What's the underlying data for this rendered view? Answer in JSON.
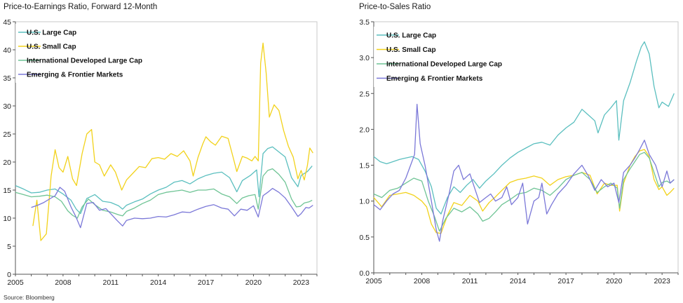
{
  "source": "Source: Bloomberg",
  "colors": {
    "us_large": "#5bbfbf",
    "us_small": "#f2d21b",
    "intl_dev": "#6fc495",
    "emerging": "#7b78d8"
  },
  "chart_data": [
    {
      "type": "line",
      "title": "Price-to-Earnings Ratio, Forward 12-Month",
      "xlabel": "",
      "ylabel": "",
      "xlim": [
        2005,
        2024
      ],
      "ylim": [
        0,
        45
      ],
      "x_ticks": [
        2005,
        2008,
        2011,
        2014,
        2017,
        2020,
        2023
      ],
      "y_ticks": [
        0,
        5,
        10,
        15,
        20,
        25,
        30,
        35,
        40,
        45
      ],
      "y_tick_labels": [
        "0",
        "5",
        "10",
        "15",
        "20",
        "25",
        "30",
        "35",
        "40",
        "45"
      ],
      "grid": false,
      "legend_position": "top-left",
      "series": [
        {
          "name": "U.S. Large Cap",
          "color": "#5bbfbf",
          "x": [
            2005.0,
            2005.5,
            2006.0,
            2006.5,
            2007.0,
            2007.5,
            2008.0,
            2008.5,
            2008.83,
            2009.1,
            2009.5,
            2010.0,
            2010.5,
            2011.0,
            2011.5,
            2011.75,
            2012.0,
            2012.5,
            2013.0,
            2013.5,
            2014.0,
            2014.5,
            2015.0,
            2015.5,
            2016.0,
            2016.5,
            2017.0,
            2017.5,
            2018.0,
            2018.5,
            2018.95,
            2019.3,
            2019.8,
            2020.2,
            2020.35,
            2020.6,
            2020.9,
            2021.2,
            2021.6,
            2022.0,
            2022.4,
            2022.8,
            2023.0,
            2023.4,
            2023.7
          ],
          "y": [
            15.8,
            15.2,
            14.5,
            14.6,
            15.0,
            15.2,
            14.3,
            13.2,
            11.6,
            10.8,
            13.5,
            14.2,
            13.0,
            12.8,
            12.2,
            11.6,
            12.3,
            12.9,
            13.4,
            14.3,
            15.0,
            15.5,
            16.4,
            16.7,
            16.1,
            17.0,
            17.6,
            18.0,
            18.2,
            17.2,
            14.7,
            16.7,
            17.6,
            18.6,
            13.8,
            21.5,
            22.4,
            22.7,
            21.8,
            20.9,
            17.2,
            15.6,
            17.6,
            18.3,
            19.3
          ]
        },
        {
          "name": "U.S. Small Cap",
          "color": "#f2d21b",
          "x": [
            2006.1,
            2006.35,
            2006.6,
            2006.95,
            2007.25,
            2007.5,
            2007.75,
            2008.0,
            2008.3,
            2008.6,
            2008.85,
            2009.2,
            2009.5,
            2009.8,
            2010.0,
            2010.3,
            2010.6,
            2011.0,
            2011.3,
            2011.7,
            2012.0,
            2012.4,
            2012.8,
            2013.2,
            2013.6,
            2014.0,
            2014.4,
            2014.8,
            2015.2,
            2015.6,
            2016.0,
            2016.2,
            2016.5,
            2016.8,
            2017.0,
            2017.3,
            2017.6,
            2018.0,
            2018.4,
            2018.7,
            2018.95,
            2019.3,
            2019.6,
            2019.9,
            2020.1,
            2020.3,
            2020.45,
            2020.6,
            2020.8,
            2021.0,
            2021.3,
            2021.6,
            2021.9,
            2022.2,
            2022.5,
            2022.8,
            2023.0,
            2023.2,
            2023.4,
            2023.55,
            2023.75
          ],
          "y": [
            8.6,
            13.2,
            6.0,
            7.2,
            17.5,
            22.2,
            19.0,
            18.2,
            21.0,
            17.0,
            15.8,
            21.5,
            25.0,
            25.8,
            20.0,
            19.5,
            17.5,
            19.5,
            18.2,
            15.0,
            16.8,
            18.0,
            19.2,
            19.0,
            20.6,
            20.8,
            20.5,
            21.5,
            21.0,
            22.0,
            20.2,
            17.5,
            20.8,
            23.2,
            24.5,
            23.6,
            23.0,
            24.6,
            24.2,
            21.0,
            18.3,
            21.0,
            20.7,
            20.2,
            21.0,
            20.2,
            37.6,
            41.2,
            35.8,
            28.0,
            30.2,
            29.2,
            25.6,
            22.8,
            20.9,
            17.0,
            18.5,
            16.8,
            19.4,
            22.5,
            21.6
          ]
        },
        {
          "name": "International Developed Large Cap",
          "color": "#6fc495",
          "x": [
            2005.0,
            2005.5,
            2006.0,
            2006.5,
            2007.0,
            2007.5,
            2007.9,
            2008.3,
            2008.6,
            2008.9,
            2009.2,
            2009.6,
            2010.0,
            2010.5,
            2011.0,
            2011.5,
            2011.75,
            2012.0,
            2012.5,
            2013.0,
            2013.5,
            2014.0,
            2014.5,
            2015.0,
            2015.5,
            2016.0,
            2016.5,
            2017.0,
            2017.5,
            2018.0,
            2018.5,
            2018.95,
            2019.3,
            2019.7,
            2020.1,
            2020.3,
            2020.6,
            2020.9,
            2021.2,
            2021.6,
            2022.0,
            2022.4,
            2022.7,
            2022.95,
            2023.2,
            2023.5,
            2023.7
          ],
          "y": [
            14.6,
            14.2,
            13.8,
            13.9,
            14.1,
            13.8,
            13.0,
            11.3,
            10.5,
            10.0,
            12.0,
            13.4,
            12.4,
            11.4,
            11.1,
            10.6,
            10.4,
            11.2,
            11.8,
            12.6,
            13.2,
            14.2,
            14.6,
            14.8,
            15.0,
            14.6,
            15.0,
            15.0,
            15.2,
            14.3,
            13.8,
            12.6,
            13.6,
            14.0,
            14.2,
            11.6,
            17.5,
            18.5,
            18.8,
            17.8,
            16.4,
            13.4,
            12.0,
            12.1,
            12.7,
            12.9,
            13.2
          ]
        },
        {
          "name": "Emerging & Frontier Markets",
          "color": "#7b78d8",
          "x": [
            2006.0,
            2006.4,
            2006.8,
            2007.2,
            2007.5,
            2007.8,
            2008.1,
            2008.5,
            2008.8,
            2009.1,
            2009.5,
            2009.9,
            2010.3,
            2010.7,
            2011.0,
            2011.4,
            2011.75,
            2012.0,
            2012.5,
            2013.0,
            2013.5,
            2014.0,
            2014.5,
            2015.0,
            2015.5,
            2016.0,
            2016.5,
            2017.0,
            2017.5,
            2018.0,
            2018.4,
            2018.8,
            2019.2,
            2019.6,
            2020.0,
            2020.3,
            2020.6,
            2020.9,
            2021.2,
            2021.6,
            2022.0,
            2022.4,
            2022.8,
            2023.0,
            2023.3,
            2023.5,
            2023.75
          ],
          "y": [
            11.9,
            12.3,
            12.8,
            13.5,
            14.0,
            15.5,
            14.8,
            12.0,
            10.3,
            8.3,
            12.6,
            12.8,
            11.4,
            11.7,
            10.8,
            9.6,
            8.6,
            9.6,
            10.0,
            9.9,
            10.0,
            10.3,
            10.2,
            10.6,
            11.1,
            11.0,
            11.6,
            12.1,
            12.4,
            11.8,
            11.6,
            10.4,
            11.6,
            11.4,
            12.2,
            10.2,
            14.0,
            14.6,
            15.3,
            14.6,
            13.6,
            12.0,
            10.3,
            10.8,
            11.9,
            11.8,
            12.3
          ]
        }
      ]
    },
    {
      "type": "line",
      "title": "Price-to-Sales Ratio",
      "xlabel": "",
      "ylabel": "",
      "xlim": [
        2005,
        2024
      ],
      "ylim": [
        0,
        3.5
      ],
      "x_ticks": [
        2005,
        2008,
        2011,
        2014,
        2017,
        2020,
        2023
      ],
      "y_ticks": [
        0,
        0.5,
        1.0,
        1.5,
        2.0,
        2.5,
        3.0,
        3.5
      ],
      "y_tick_labels": [
        "0.0",
        "0.5",
        "1.0",
        "1.5",
        "2.0",
        "2.5",
        "3.0",
        "3.5"
      ],
      "grid": false,
      "legend_position": "top-left",
      "series": [
        {
          "name": "U.S. Large Cap",
          "color": "#5bbfbf",
          "x": [
            2005.0,
            2005.4,
            2005.8,
            2006.2,
            2006.6,
            2007.0,
            2007.4,
            2007.8,
            2008.2,
            2008.6,
            2008.9,
            2009.2,
            2009.6,
            2010.0,
            2010.4,
            2010.8,
            2011.2,
            2011.6,
            2012.0,
            2012.5,
            2013.0,
            2013.5,
            2014.0,
            2014.5,
            2015.0,
            2015.5,
            2016.0,
            2016.5,
            2017.0,
            2017.5,
            2018.0,
            2018.4,
            2018.8,
            2019.0,
            2019.4,
            2019.8,
            2020.15,
            2020.3,
            2020.6,
            2021.0,
            2021.4,
            2021.7,
            2021.9,
            2022.2,
            2022.5,
            2022.8,
            2023.0,
            2023.4,
            2023.75
          ],
          "y": [
            1.62,
            1.55,
            1.52,
            1.55,
            1.58,
            1.6,
            1.62,
            1.58,
            1.42,
            1.2,
            0.9,
            0.82,
            1.05,
            1.2,
            1.12,
            1.22,
            1.3,
            1.18,
            1.28,
            1.38,
            1.5,
            1.6,
            1.68,
            1.74,
            1.8,
            1.82,
            1.78,
            1.92,
            2.02,
            2.1,
            2.28,
            2.2,
            2.12,
            1.95,
            2.2,
            2.3,
            2.4,
            1.85,
            2.4,
            2.65,
            2.95,
            3.15,
            3.22,
            3.05,
            2.6,
            2.3,
            2.38,
            2.32,
            2.5
          ]
        },
        {
          "name": "U.S. Small Cap",
          "color": "#f2d21b",
          "x": [
            2005.0,
            2005.5,
            2006.0,
            2006.5,
            2007.0,
            2007.5,
            2008.0,
            2008.3,
            2008.6,
            2008.9,
            2009.2,
            2009.6,
            2010.0,
            2010.5,
            2011.0,
            2011.5,
            2011.8,
            2012.2,
            2012.6,
            2013.0,
            2013.5,
            2014.0,
            2014.5,
            2015.0,
            2015.5,
            2016.0,
            2016.5,
            2017.0,
            2017.5,
            2018.0,
            2018.5,
            2018.95,
            2019.4,
            2019.8,
            2020.2,
            2020.35,
            2020.6,
            2021.0,
            2021.3,
            2021.6,
            2021.9,
            2022.2,
            2022.5,
            2022.8,
            2023.0,
            2023.3,
            2023.5,
            2023.75
          ],
          "y": [
            1.05,
            0.92,
            1.08,
            1.1,
            1.12,
            1.08,
            1.0,
            0.92,
            0.68,
            0.56,
            0.55,
            0.8,
            0.98,
            0.94,
            1.08,
            1.0,
            0.86,
            0.98,
            1.06,
            1.15,
            1.26,
            1.3,
            1.32,
            1.35,
            1.32,
            1.22,
            1.3,
            1.34,
            1.36,
            1.4,
            1.36,
            1.1,
            1.25,
            1.22,
            1.22,
            0.86,
            1.25,
            1.5,
            1.62,
            1.7,
            1.72,
            1.62,
            1.3,
            1.16,
            1.2,
            1.08,
            1.12,
            1.18
          ]
        },
        {
          "name": "International Developed Large Cap",
          "color": "#6fc495",
          "x": [
            2005.0,
            2005.5,
            2006.0,
            2006.5,
            2007.0,
            2007.5,
            2008.0,
            2008.4,
            2008.8,
            2009.1,
            2009.5,
            2010.0,
            2010.5,
            2011.0,
            2011.5,
            2011.8,
            2012.2,
            2012.6,
            2013.0,
            2013.5,
            2014.0,
            2014.5,
            2015.0,
            2015.5,
            2016.0,
            2016.5,
            2017.0,
            2017.5,
            2018.0,
            2018.5,
            2018.95,
            2019.4,
            2019.8,
            2020.2,
            2020.35,
            2020.6,
            2021.0,
            2021.3,
            2021.6,
            2021.9,
            2022.2,
            2022.5,
            2022.8,
            2023.0,
            2023.3,
            2023.5,
            2023.75
          ],
          "y": [
            1.1,
            1.05,
            1.15,
            1.18,
            1.25,
            1.32,
            1.28,
            1.0,
            0.78,
            0.58,
            0.76,
            0.9,
            0.85,
            0.92,
            0.82,
            0.72,
            0.76,
            0.85,
            0.95,
            1.02,
            1.1,
            1.12,
            1.18,
            1.15,
            1.08,
            1.18,
            1.3,
            1.36,
            1.4,
            1.3,
            1.12,
            1.2,
            1.25,
            1.18,
            0.9,
            1.3,
            1.45,
            1.55,
            1.65,
            1.68,
            1.6,
            1.4,
            1.2,
            1.26,
            1.28,
            1.25,
            1.3
          ]
        },
        {
          "name": "Emerging & Frontier Markets",
          "color": "#7b78d8",
          "x": [
            2005.0,
            2005.4,
            2005.8,
            2006.2,
            2006.6,
            2007.0,
            2007.3,
            2007.55,
            2007.7,
            2007.9,
            2008.2,
            2008.6,
            2008.9,
            2009.1,
            2009.3,
            2009.7,
            2010.0,
            2010.3,
            2010.6,
            2011.0,
            2011.3,
            2011.6,
            2012.0,
            2012.3,
            2012.6,
            2013.0,
            2013.3,
            2013.6,
            2014.0,
            2014.3,
            2014.6,
            2015.0,
            2015.3,
            2015.5,
            2015.8,
            2016.1,
            2016.5,
            2017.0,
            2017.5,
            2018.0,
            2018.4,
            2018.8,
            2019.2,
            2019.6,
            2020.0,
            2020.3,
            2020.6,
            2021.0,
            2021.3,
            2021.6,
            2021.9,
            2022.2,
            2022.6,
            2023.0,
            2023.3,
            2023.5,
            2023.75
          ],
          "y": [
            0.95,
            0.88,
            1.0,
            1.1,
            1.15,
            1.32,
            1.5,
            1.65,
            2.35,
            1.8,
            1.5,
            1.0,
            0.6,
            0.44,
            0.72,
            1.1,
            1.42,
            1.5,
            1.3,
            1.38,
            1.18,
            0.98,
            1.05,
            1.1,
            1.0,
            1.05,
            1.2,
            0.95,
            1.05,
            1.25,
            0.68,
            1.0,
            1.05,
            1.25,
            0.82,
            0.95,
            1.1,
            1.22,
            1.38,
            1.5,
            1.35,
            1.15,
            1.3,
            1.2,
            1.25,
            0.98,
            1.4,
            1.5,
            1.6,
            1.72,
            1.85,
            1.65,
            1.5,
            1.2,
            1.42,
            1.25,
            1.3
          ]
        }
      ]
    }
  ]
}
